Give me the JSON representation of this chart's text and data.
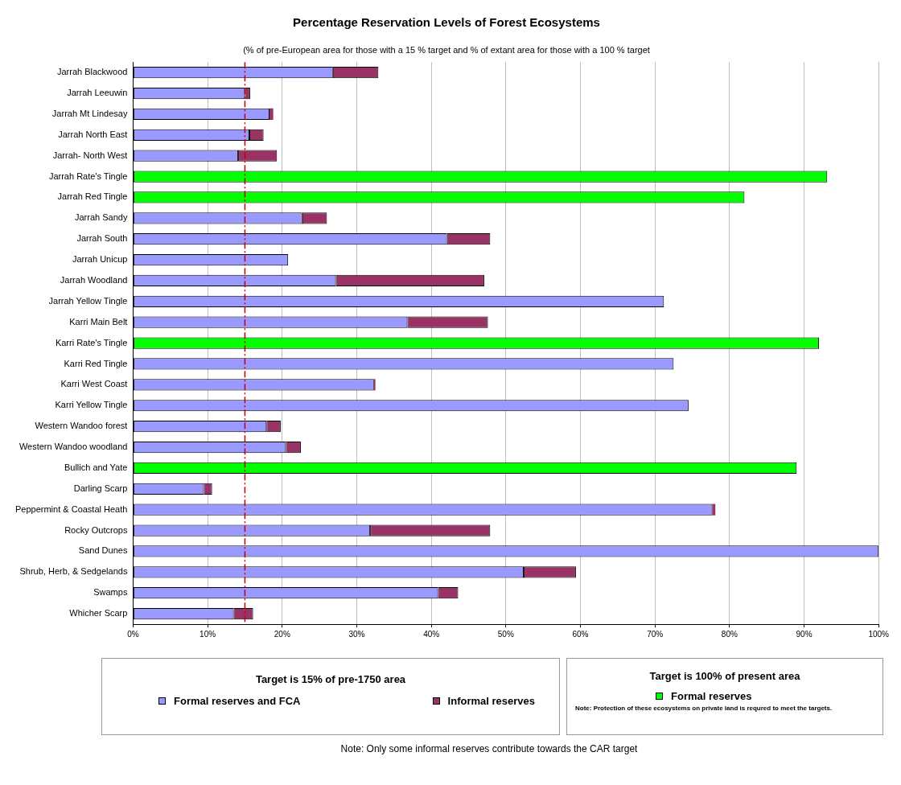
{
  "chart_data": {
    "type": "bar",
    "orientation": "horizontal",
    "stacked": true,
    "title": "Percentage Reservation Levels of Forest Ecosystems",
    "subtitle": "(% of pre-European area for those with a 15 % target and % of extant area for those with a 100 % target",
    "categories": [
      "Jarrah Blackwood",
      "Jarrah Leeuwin",
      "Jarrah Mt Lindesay",
      "Jarrah North East",
      "Jarrah- North West",
      "Jarrah Rate's Tingle",
      "Jarrah Red Tingle",
      "Jarrah Sandy",
      "Jarrah South",
      "Jarrah Unicup",
      "Jarrah Woodland",
      "Jarrah Yellow Tingle",
      "Karri Main Belt",
      "Karri Rate's Tingle",
      "Karri Red Tingle",
      "Karri West Coast",
      "Karri Yellow Tingle",
      "Western Wandoo forest",
      "Western Wandoo woodland",
      "Bullich and Yate",
      "Darling Scarp",
      "Peppermint & Coastal Heath",
      "Rocky Outcrops",
      "Sand Dunes",
      "Shrub, Herb, & Sedgelands",
      "Swamps",
      "Whicher Scarp"
    ],
    "series": [
      {
        "name": "Formal reserves and FCA",
        "color": "#9999ff",
        "values": [
          26.8,
          15.0,
          18.3,
          15.6,
          14.1,
          null,
          null,
          22.7,
          42.1,
          20.8,
          27.2,
          71.2,
          36.8,
          null,
          72.5,
          32.3,
          74.5,
          17.9,
          20.5,
          null,
          9.5,
          77.7,
          31.8,
          100,
          52.4,
          40.9,
          13.5
        ]
      },
      {
        "name": "Informal reserves",
        "color": "#993366",
        "values": [
          6.1,
          0.7,
          0.5,
          1.9,
          5.2,
          null,
          null,
          3.3,
          5.8,
          null,
          19.9,
          null,
          10.8,
          null,
          null,
          0.2,
          null,
          1.9,
          2.0,
          null,
          1.1,
          0.4,
          16.1,
          null,
          7.0,
          2.7,
          2.6
        ]
      },
      {
        "name": "Formal reserves",
        "color": "#00ff00",
        "values": [
          null,
          null,
          null,
          null,
          null,
          93.1,
          82.0,
          null,
          null,
          null,
          null,
          null,
          null,
          92.0,
          null,
          null,
          null,
          null,
          null,
          89.0,
          null,
          null,
          null,
          null,
          null,
          null,
          null
        ]
      }
    ],
    "xlim": [
      0,
      100
    ],
    "xticks": [
      {
        "value": 0,
        "label": "0%"
      },
      {
        "value": 10,
        "label": "10%"
      },
      {
        "value": 20,
        "label": "20%"
      },
      {
        "value": 30,
        "label": "30%"
      },
      {
        "value": 40,
        "label": "40%"
      },
      {
        "value": 50,
        "label": "50%"
      },
      {
        "value": 60,
        "label": "60%"
      },
      {
        "value": 70,
        "label": "70%"
      },
      {
        "value": 80,
        "label": "80%"
      },
      {
        "value": 90,
        "label": "90%"
      },
      {
        "value": 100,
        "label": "100%"
      }
    ],
    "grid": "x",
    "ref_lines": [
      {
        "axis": "x",
        "value": 15,
        "color": "#c00000",
        "line_style": "dashed"
      }
    ],
    "legend": "bottom",
    "legend_title": "Target is 15% of pre-1750 area",
    "annotations": [
      "Target is 100% of present area",
      "Note: Protection of these ecosystems on private land is requred to meet the targets.",
      "Note: Only some informal reserves contribute towards the CAR target"
    ]
  }
}
